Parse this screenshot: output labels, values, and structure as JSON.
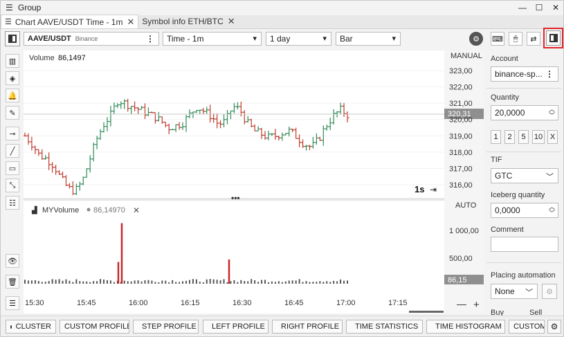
{
  "window": {
    "title": "Group",
    "minimize": "—",
    "maximize": "☐",
    "close": "✕"
  },
  "tabs": [
    {
      "label": "Chart AAVE/USDT Time - 1m",
      "active": true
    },
    {
      "label": "Symbol info ETH/BTC",
      "active": false
    }
  ],
  "toolbar": {
    "symbol": "AAVE/USDT",
    "exchange": "Binance",
    "timeframe": "Time - 1m",
    "range": "1 day",
    "chart_type": "Bar"
  },
  "chart": {
    "volume_label": "Volume",
    "volume_value": "86,1497",
    "scale_mode_top": "MANUAL",
    "scale_mode_bottom": "AUTO",
    "price_ticks": [
      "323,00",
      "322,00",
      "321,00",
      "320,00",
      "319,00",
      "318,00",
      "317,00",
      "316,00"
    ],
    "last_price": "320,31",
    "vol_ticks": [
      "1 000,00",
      "500,00"
    ],
    "last_vol": "86,15",
    "indicator_name": "MYVolume",
    "indicator_value": "86,14970",
    "interval_label": "1s",
    "time_ticks": [
      "15:30",
      "15:45",
      "16:00",
      "16:15",
      "16:30",
      "16:45",
      "17:00",
      "17:15"
    ],
    "zoom_out": "—",
    "zoom_in": "+"
  },
  "chart_data": {
    "type": "bar",
    "title": "",
    "x_unit": "time (1m bars)",
    "x_range": [
      "15:30",
      "17:15"
    ],
    "ylim": [
      315.5,
      323.5
    ],
    "ohlc_close_path": [
      319.0,
      318.5,
      317.8,
      317.6,
      317.2,
      316.4,
      315.8,
      315.6,
      316.2,
      317.5,
      318.8,
      319.7,
      320.3,
      321.2,
      321.0,
      320.8,
      320.6,
      320.4,
      320.2,
      319.9,
      319.5,
      319.6,
      319.8,
      320.3,
      320.8,
      320.5,
      320.2,
      319.7,
      319.9,
      320.8,
      320.6,
      319.8,
      319.3,
      319.1,
      318.9,
      319.0,
      319.2,
      319.3,
      318.9,
      318.5,
      318.3,
      318.8,
      319.6,
      320.2,
      320.6,
      320.3
    ],
    "volume_ylim": [
      0,
      1300
    ],
    "volume_spikes": [
      {
        "x": "15:58",
        "value": 1250
      },
      {
        "x": "15:57",
        "value": 450
      },
      {
        "x": "16:29",
        "value": 500
      }
    ]
  },
  "right_panel": {
    "account_label": "Account",
    "account_value": "binance-sp...",
    "quantity_label": "Quantity",
    "quantity_value": "20,0000",
    "qty_buttons": [
      "1",
      "2",
      "5",
      "10",
      "X"
    ],
    "tif_label": "TIF",
    "tif_value": "GTC",
    "iceberg_label": "Iceberg quantity",
    "iceberg_value": "0,0000",
    "comment_label": "Comment",
    "comment_value": "",
    "placing_label": "Placing automation",
    "placing_value": "None",
    "buy_label": "Buy",
    "sell_label": "Sell"
  },
  "bottom_buttons": [
    "CLUSTER",
    "CUSTOM PROFILE",
    "STEP PROFILE",
    "LEFT PROFILE",
    "RIGHT PROFILE",
    "TIME STATISTICS",
    "TIME HISTOGRAM",
    "CUSTOM"
  ]
}
